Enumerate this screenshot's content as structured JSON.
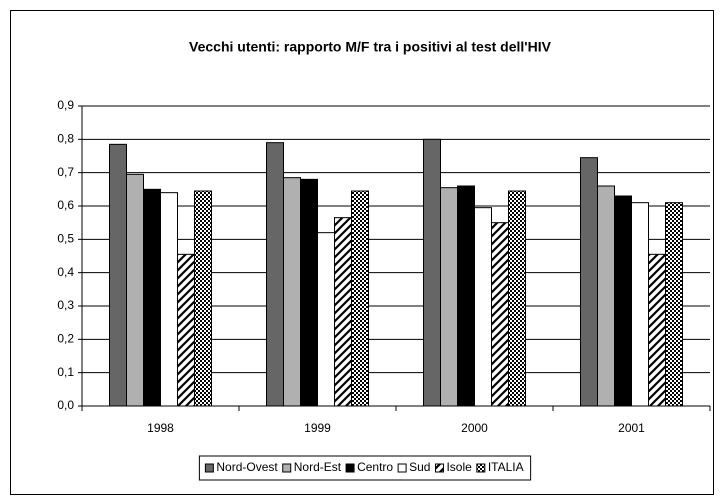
{
  "chart_data": {
    "type": "bar",
    "title": "Vecchi utenti: rapporto M/F tra i positivi al test dell'HIV",
    "categories": [
      "1998",
      "1999",
      "2000",
      "2001"
    ],
    "series": [
      {
        "name": "Nord-Ovest",
        "color": "#666666",
        "values": [
          0.785,
          0.79,
          0.8,
          0.745
        ]
      },
      {
        "name": "Nord-Est",
        "color": "#b0b0b0",
        "values": [
          0.695,
          0.685,
          0.655,
          0.66
        ]
      },
      {
        "name": "Centro",
        "color": "#000000",
        "values": [
          0.65,
          0.68,
          0.66,
          0.63
        ]
      },
      {
        "name": "Sud",
        "color": "#ffffff",
        "values": [
          0.64,
          0.52,
          0.595,
          0.61
        ]
      },
      {
        "name": "Isole",
        "color": "#000000",
        "pattern": "diagonal",
        "values": [
          0.455,
          0.565,
          0.55,
          0.455
        ]
      },
      {
        "name": "ITALIA",
        "color": "#000000",
        "pattern": "checker",
        "values": [
          0.645,
          0.645,
          0.645,
          0.61
        ]
      }
    ],
    "ylim": [
      0,
      0.9
    ],
    "yticks": [
      {
        "value": 0,
        "label": "0,0"
      },
      {
        "value": 0.1,
        "label": "0,1"
      },
      {
        "value": 0.2,
        "label": "0,2"
      },
      {
        "value": 0.3,
        "label": "0,3"
      },
      {
        "value": 0.4,
        "label": "0,4"
      },
      {
        "value": 0.5,
        "label": "0,5"
      },
      {
        "value": 0.6,
        "label": "0,6"
      },
      {
        "value": 0.7,
        "label": "0,7"
      },
      {
        "value": 0.8,
        "label": "0,8"
      },
      {
        "value": 0.9,
        "label": "0,9"
      }
    ],
    "grid": true,
    "legend": "bottom"
  }
}
